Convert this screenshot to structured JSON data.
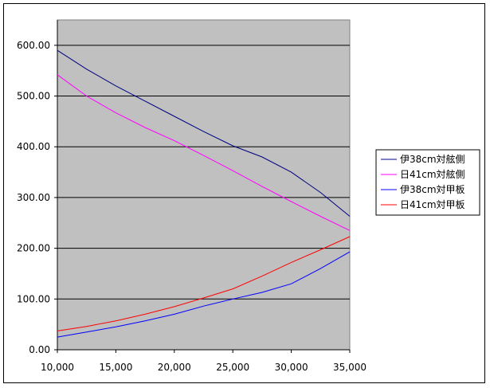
{
  "chart_data": {
    "type": "line",
    "title": "",
    "xlabel": "",
    "ylabel": "",
    "xlim": [
      10000,
      35000
    ],
    "ylim": [
      0,
      650
    ],
    "x_ticks": [
      10000,
      15000,
      20000,
      25000,
      30000,
      35000
    ],
    "x_tick_labels": [
      "10,000",
      "15,000",
      "20,000",
      "25,000",
      "30,000",
      "35,000"
    ],
    "y_ticks": [
      0,
      100,
      200,
      300,
      400,
      500,
      600
    ],
    "y_tick_labels": [
      "0.00",
      "100.00",
      "200.00",
      "300.00",
      "400.00",
      "500.00",
      "600.00"
    ],
    "grid": "horizontal",
    "plot_background": "#c0c0c0",
    "legend_position": "right",
    "series": [
      {
        "name": "伊38cm対舷側",
        "color": "#000080",
        "x": [
          10000,
          12500,
          15000,
          17500,
          20000,
          22500,
          25000,
          27500,
          30000,
          32500,
          35000
        ],
        "y": [
          590,
          553,
          520,
          490,
          460,
          430,
          402,
          380,
          350,
          310,
          263
        ]
      },
      {
        "name": "日41cm対舷側",
        "color": "#ff00ff",
        "x": [
          10000,
          12500,
          15000,
          17500,
          20000,
          22500,
          25000,
          27500,
          30000,
          32500,
          35000
        ],
        "y": [
          542,
          500,
          467,
          438,
          412,
          383,
          353,
          322,
          292,
          263,
          235
        ]
      },
      {
        "name": "伊38cm対甲板",
        "color": "#0000ff",
        "x": [
          10000,
          12500,
          15000,
          17500,
          20000,
          22500,
          25000,
          27500,
          30000,
          32500,
          35000
        ],
        "y": [
          25,
          35,
          45,
          57,
          70,
          86,
          100,
          113,
          130,
          160,
          193
        ]
      },
      {
        "name": "日41cm対甲板",
        "color": "#ff0000",
        "x": [
          10000,
          12500,
          15000,
          17500,
          20000,
          22500,
          25000,
          27500,
          30000,
          32500,
          35000
        ],
        "y": [
          37,
          46,
          57,
          70,
          85,
          102,
          120,
          145,
          172,
          197,
          223
        ]
      }
    ]
  }
}
